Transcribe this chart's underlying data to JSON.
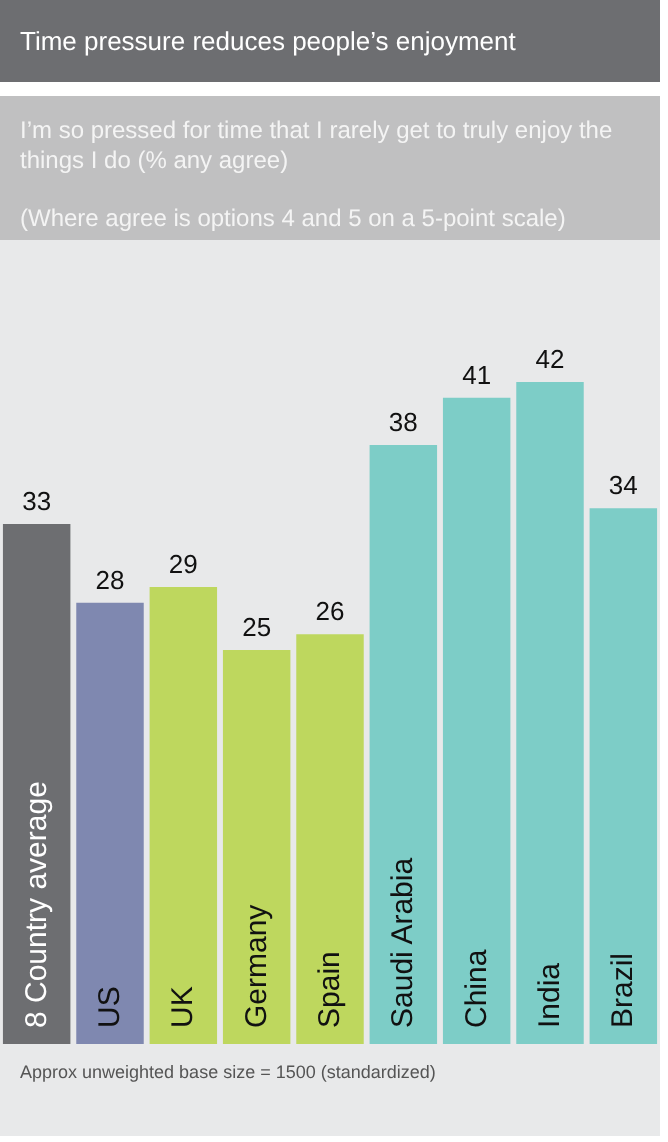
{
  "chart_data": {
    "type": "bar",
    "title": "Time pressure reduces people’s enjoyment",
    "subtitle": "I’m so pressed for time that I rarely get to truly enjoy the things I do (% any agree)",
    "annotations": [
      "(Where agree is options 4 and 5 on a 5-point scale)",
      "Approx unweighted base size = 1500 (standardized)"
    ],
    "categories": [
      "8 Country average",
      "US",
      "UK",
      "Germany",
      "Spain",
      "Saudi Arabia",
      "China",
      "India",
      "Brazil"
    ],
    "values": [
      33,
      28,
      29,
      25,
      26,
      38,
      41,
      42,
      34
    ],
    "colors": [
      "#6d6e71",
      "#7f88b0",
      "#bed75e",
      "#bed75e",
      "#bed75e",
      "#7dcdc7",
      "#7dcdc7",
      "#7dcdc7",
      "#7dcdc7"
    ],
    "data_labels": true
  }
}
